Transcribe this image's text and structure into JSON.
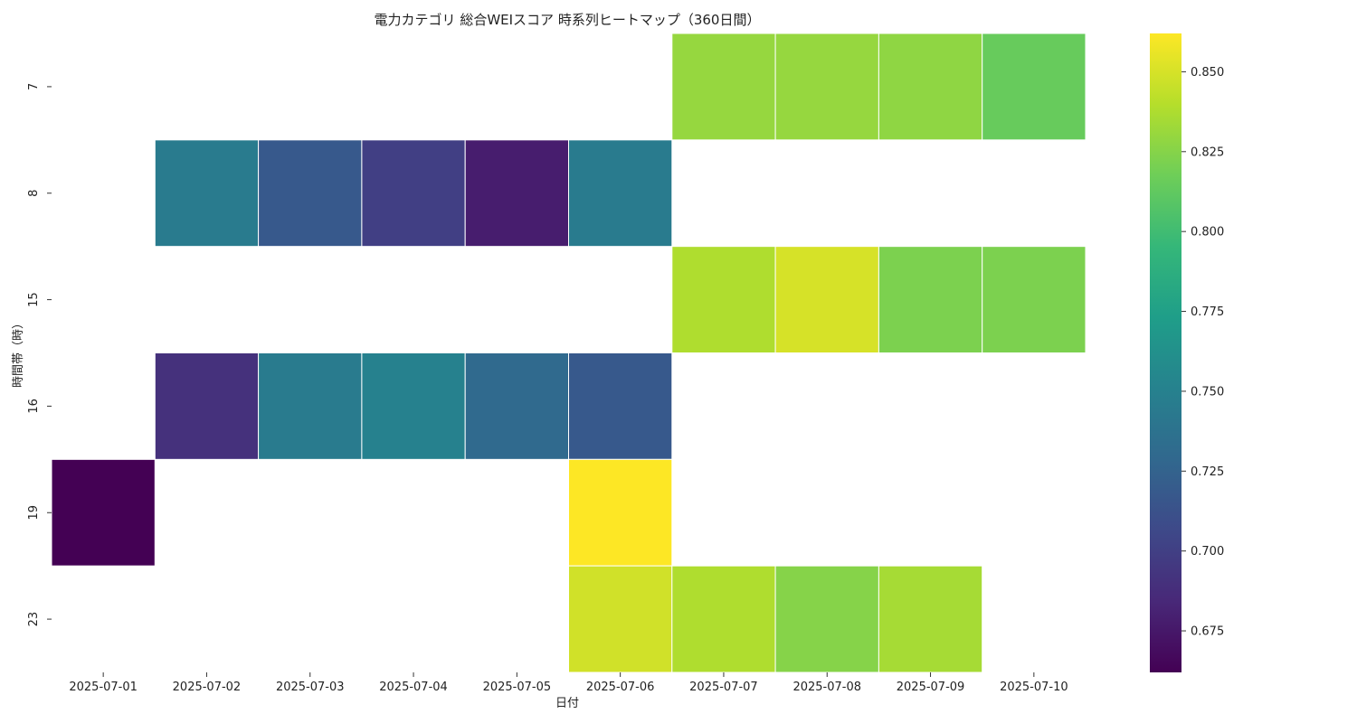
{
  "chart_data": {
    "type": "heatmap",
    "title": "電力カテゴリ 総合WEIスコア 時系列ヒートマップ（360日間）",
    "xlabel": "日付",
    "ylabel": "時間帯（時）",
    "x": [
      "2025-07-01",
      "2025-07-02",
      "2025-07-03",
      "2025-07-04",
      "2025-07-05",
      "2025-07-06",
      "2025-07-07",
      "2025-07-08",
      "2025-07-09",
      "2025-07-10"
    ],
    "y": [
      "7",
      "8",
      "15",
      "16",
      "19",
      "23"
    ],
    "values": [
      [
        null,
        null,
        null,
        null,
        null,
        null,
        0.83,
        0.83,
        0.828,
        0.815
      ],
      [
        null,
        0.745,
        0.718,
        0.7,
        0.678,
        0.745,
        null,
        null,
        null,
        null
      ],
      [
        null,
        null,
        null,
        null,
        null,
        null,
        0.838,
        0.85,
        0.822,
        0.822
      ],
      [
        null,
        0.69,
        0.745,
        0.75,
        0.73,
        0.718,
        null,
        null,
        null,
        null
      ],
      [
        0.662,
        null,
        null,
        null,
        null,
        0.862,
        null,
        null,
        null,
        null
      ],
      [
        null,
        null,
        null,
        null,
        null,
        0.848,
        0.838,
        0.825,
        0.835,
        null
      ]
    ],
    "colorbar": {
      "colormap": "viridis",
      "range": [
        0.662,
        0.862
      ],
      "ticks": [
        0.675,
        0.7,
        0.725,
        0.75,
        0.775,
        0.8,
        0.825,
        0.85
      ],
      "tick_labels": [
        "0.675",
        "0.700",
        "0.725",
        "0.750",
        "0.775",
        "0.800",
        "0.825",
        "0.850"
      ]
    }
  }
}
